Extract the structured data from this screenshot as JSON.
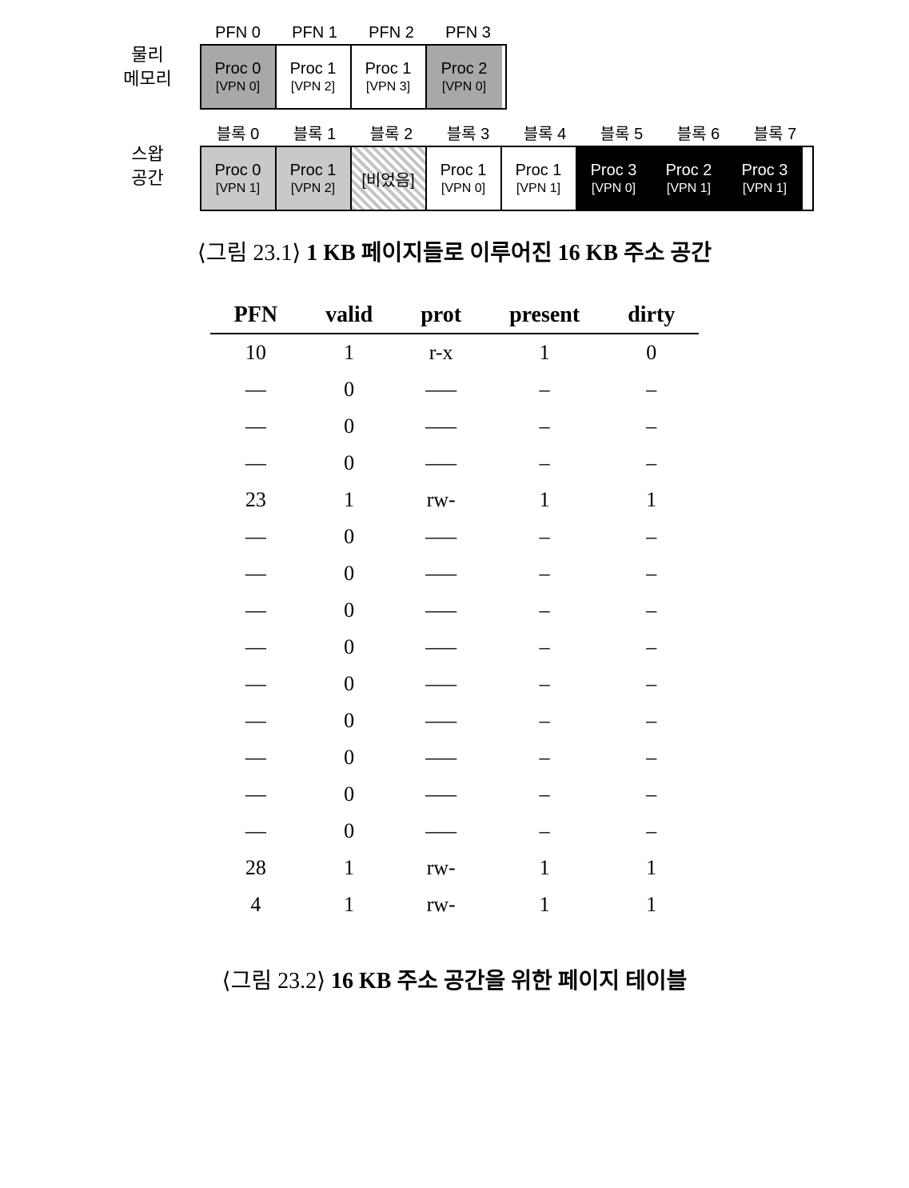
{
  "figure1": {
    "physical": {
      "label_line1": "물리",
      "label_line2": "메모리",
      "headers": [
        "PFN 0",
        "PFN 1",
        "PFN 2",
        "PFN 3"
      ],
      "frames": [
        {
          "proc": "Proc 0",
          "vpn": "[VPN 0]",
          "fill": "mgray"
        },
        {
          "proc": "Proc 1",
          "vpn": "[VPN 2]",
          "fill": "white"
        },
        {
          "proc": "Proc 1",
          "vpn": "[VPN 3]",
          "fill": "white"
        },
        {
          "proc": "Proc 2",
          "vpn": "[VPN 0]",
          "fill": "mgray"
        }
      ]
    },
    "swap": {
      "label_line1": "스왑",
      "label_line2": "공간",
      "headers": [
        "블록 0",
        "블록 1",
        "블록 2",
        "블록 3",
        "블록 4",
        "블록 5",
        "블록 6",
        "블록 7"
      ],
      "blocks": [
        {
          "proc": "Proc 0",
          "vpn": "[VPN 1]",
          "fill": "lgray"
        },
        {
          "proc": "Proc 1",
          "vpn": "[VPN 2]",
          "fill": "lgray"
        },
        {
          "proc": "[비었음]",
          "vpn": "",
          "fill": "hatch"
        },
        {
          "proc": "Proc 1",
          "vpn": "[VPN 0]",
          "fill": "white"
        },
        {
          "proc": "Proc 1",
          "vpn": "[VPN 1]",
          "fill": "white"
        },
        {
          "proc": "Proc 3",
          "vpn": "[VPN 0]",
          "fill": "black"
        },
        {
          "proc": "Proc 2",
          "vpn": "[VPN 1]",
          "fill": "black"
        },
        {
          "proc": "Proc 3",
          "vpn": "[VPN 1]",
          "fill": "black"
        }
      ]
    },
    "caption_prefix": "⟨그림 23.1⟩ ",
    "caption_bold": "1 KB 페이지들로 이루어진 16 KB 주소 공간"
  },
  "table": {
    "columns": [
      "PFN",
      "valid",
      "prot",
      "present",
      "dirty"
    ],
    "rows": [
      [
        "10",
        "1",
        "r-x",
        "1",
        "0"
      ],
      [
        "––",
        "0",
        "–––",
        "–",
        "–"
      ],
      [
        "––",
        "0",
        "–––",
        "–",
        "–"
      ],
      [
        "––",
        "0",
        "–––",
        "–",
        "–"
      ],
      [
        "23",
        "1",
        "rw-",
        "1",
        "1"
      ],
      [
        "––",
        "0",
        "–––",
        "–",
        "–"
      ],
      [
        "––",
        "0",
        "–––",
        "–",
        "–"
      ],
      [
        "––",
        "0",
        "–––",
        "–",
        "–"
      ],
      [
        "––",
        "0",
        "–––",
        "–",
        "–"
      ],
      [
        "––",
        "0",
        "–––",
        "–",
        "–"
      ],
      [
        "––",
        "0",
        "–––",
        "–",
        "–"
      ],
      [
        "––",
        "0",
        "–––",
        "–",
        "–"
      ],
      [
        "––",
        "0",
        "–––",
        "–",
        "–"
      ],
      [
        "––",
        "0",
        "–––",
        "–",
        "–"
      ],
      [
        "28",
        "1",
        "rw-",
        "1",
        "1"
      ],
      [
        "4",
        "1",
        "rw-",
        "1",
        "1"
      ]
    ]
  },
  "figure2": {
    "caption_prefix": "⟨그림 23.2⟩ ",
    "caption_bold": "16 KB 주소 공간을 위한 페이지 테이블"
  },
  "colors": {
    "lgray": "#c9c9c9",
    "mgray": "#a8a8a8",
    "white": "#ffffff",
    "black": "#000000",
    "hatch_a": "#c4c4c4",
    "hatch_b": "#ffffff",
    "border": "#000000",
    "hr": "#000000"
  }
}
